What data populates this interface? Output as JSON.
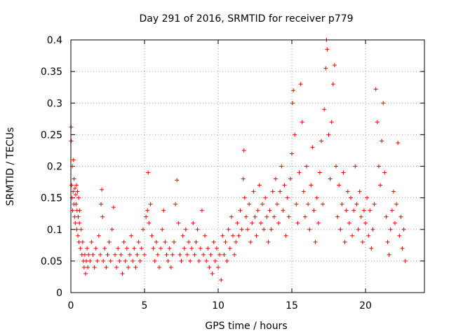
{
  "chart_data": {
    "type": "scatter",
    "title": "Day 291 of 2016, SRMTID for receiver p779",
    "xlabel": "GPS time / hours",
    "ylabel": "SRMTID / TECUs",
    "xlim": [
      0,
      24
    ],
    "ylim": [
      0,
      0.4
    ],
    "grid": true,
    "marker": "+",
    "color": "#ff0000",
    "xticks": [
      0,
      5,
      10,
      15,
      20
    ],
    "xtick_labels": [
      "0",
      "5",
      "10",
      "15",
      "20"
    ],
    "yticks": [
      0,
      0.05,
      0.1,
      0.15,
      0.2,
      0.25,
      0.3,
      0.35,
      0.4
    ],
    "ytick_labels": [
      "0",
      "0.05",
      "0.1",
      "0.15",
      "0.2",
      "0.25",
      "0.3",
      "0.35",
      "0.4"
    ],
    "series": [
      {
        "name": "p779",
        "points": [
          [
            0.02,
            0.262
          ],
          [
            0.03,
            0.24
          ],
          [
            0.05,
            0.17
          ],
          [
            0.08,
            0.15
          ],
          [
            0.1,
            0.2
          ],
          [
            0.12,
            0.13
          ],
          [
            0.15,
            0.16
          ],
          [
            0.18,
            0.21
          ],
          [
            0.2,
            0.14
          ],
          [
            0.22,
            0.18
          ],
          [
            0.25,
            0.12
          ],
          [
            0.28,
            0.165
          ],
          [
            0.3,
            0.11
          ],
          [
            0.33,
            0.155
          ],
          [
            0.35,
            0.14
          ],
          [
            0.38,
            0.17
          ],
          [
            0.4,
            0.1
          ],
          [
            0.42,
            0.13
          ],
          [
            0.45,
            0.16
          ],
          [
            0.48,
            0.09
          ],
          [
            0.5,
            0.12
          ],
          [
            0.53,
            0.15
          ],
          [
            0.55,
            0.08
          ],
          [
            0.58,
            0.11
          ],
          [
            0.6,
            0.13
          ],
          [
            0.65,
            0.07
          ],
          [
            0.7,
            0.1
          ],
          [
            0.75,
            0.06
          ],
          [
            0.8,
            0.08
          ],
          [
            0.85,
            0.05
          ],
          [
            0.9,
            0.04
          ],
          [
            0.95,
            0.06
          ],
          [
            1.0,
            0.03
          ],
          [
            1.05,
            0.05
          ],
          [
            1.1,
            0.07
          ],
          [
            1.15,
            0.04
          ],
          [
            1.2,
            0.06
          ],
          [
            1.3,
            0.05
          ],
          [
            1.4,
            0.08
          ],
          [
            1.5,
            0.06
          ],
          [
            1.6,
            0.04
          ],
          [
            1.7,
            0.07
          ],
          [
            1.8,
            0.05
          ],
          [
            1.9,
            0.09
          ],
          [
            2.0,
            0.06
          ],
          [
            2.05,
            0.14
          ],
          [
            2.1,
            0.163
          ],
          [
            2.15,
            0.12
          ],
          [
            2.2,
            0.05
          ],
          [
            2.3,
            0.07
          ],
          [
            2.4,
            0.04
          ],
          [
            2.5,
            0.06
          ],
          [
            2.6,
            0.08
          ],
          [
            2.7,
            0.05
          ],
          [
            2.8,
            0.1
          ],
          [
            2.9,
            0.135
          ],
          [
            3.0,
            0.06
          ],
          [
            3.1,
            0.04
          ],
          [
            3.2,
            0.07
          ],
          [
            3.3,
            0.05
          ],
          [
            3.4,
            0.06
          ],
          [
            3.5,
            0.03
          ],
          [
            3.6,
            0.08
          ],
          [
            3.7,
            0.05
          ],
          [
            3.8,
            0.07
          ],
          [
            3.9,
            0.04
          ],
          [
            4.0,
            0.06
          ],
          [
            4.1,
            0.09
          ],
          [
            4.2,
            0.05
          ],
          [
            4.3,
            0.07
          ],
          [
            4.4,
            0.04
          ],
          [
            4.5,
            0.06
          ],
          [
            4.6,
            0.08
          ],
          [
            4.7,
            0.05
          ],
          [
            4.8,
            0.07
          ],
          [
            4.9,
            0.1
          ],
          [
            5.0,
            0.06
          ],
          [
            5.1,
            0.12
          ],
          [
            5.2,
            0.13
          ],
          [
            5.25,
            0.19
          ],
          [
            5.3,
            0.11
          ],
          [
            5.4,
            0.14
          ],
          [
            5.5,
            0.09
          ],
          [
            5.6,
            0.07
          ],
          [
            5.7,
            0.05
          ],
          [
            5.8,
            0.08
          ],
          [
            5.9,
            0.06
          ],
          [
            6.0,
            0.04
          ],
          [
            6.1,
            0.07
          ],
          [
            6.2,
            0.1
          ],
          [
            6.3,
            0.13
          ],
          [
            6.4,
            0.08
          ],
          [
            6.5,
            0.06
          ],
          [
            6.6,
            0.05
          ],
          [
            6.7,
            0.07
          ],
          [
            6.8,
            0.04
          ],
          [
            6.9,
            0.06
          ],
          [
            7.0,
            0.08
          ],
          [
            7.1,
            0.14
          ],
          [
            7.2,
            0.178
          ],
          [
            7.3,
            0.11
          ],
          [
            7.4,
            0.06
          ],
          [
            7.5,
            0.05
          ],
          [
            7.6,
            0.09
          ],
          [
            7.7,
            0.07
          ],
          [
            7.8,
            0.1
          ],
          [
            7.9,
            0.06
          ],
          [
            8.0,
            0.08
          ],
          [
            8.1,
            0.05
          ],
          [
            8.2,
            0.07
          ],
          [
            8.3,
            0.11
          ],
          [
            8.4,
            0.06
          ],
          [
            8.5,
            0.08
          ],
          [
            8.6,
            0.1
          ],
          [
            8.7,
            0.05
          ],
          [
            8.8,
            0.07
          ],
          [
            8.9,
            0.13
          ],
          [
            9.0,
            0.06
          ],
          [
            9.1,
            0.09
          ],
          [
            9.2,
            0.05
          ],
          [
            9.3,
            0.07
          ],
          [
            9.4,
            0.04
          ],
          [
            9.5,
            0.06
          ],
          [
            9.6,
            0.03
          ],
          [
            9.7,
            0.08
          ],
          [
            9.8,
            0.05
          ],
          [
            9.9,
            0.07
          ],
          [
            10.0,
            0.04
          ],
          [
            10.1,
            0.06
          ],
          [
            10.2,
            0.02
          ],
          [
            10.3,
            0.09
          ],
          [
            10.4,
            0.06
          ],
          [
            10.5,
            0.08
          ],
          [
            10.6,
            0.05
          ],
          [
            10.7,
            0.1
          ],
          [
            10.8,
            0.07
          ],
          [
            10.9,
            0.12
          ],
          [
            11.0,
            0.09
          ],
          [
            11.1,
            0.06
          ],
          [
            11.2,
            0.08
          ],
          [
            11.3,
            0.11
          ],
          [
            11.4,
            0.09
          ],
          [
            11.5,
            0.13
          ],
          [
            11.6,
            0.1
          ],
          [
            11.7,
            0.18
          ],
          [
            11.75,
            0.225
          ],
          [
            11.8,
            0.15
          ],
          [
            11.9,
            0.12
          ],
          [
            12.0,
            0.1
          ],
          [
            12.1,
            0.14
          ],
          [
            12.2,
            0.08
          ],
          [
            12.3,
            0.11
          ],
          [
            12.4,
            0.16
          ],
          [
            12.5,
            0.12
          ],
          [
            12.6,
            0.09
          ],
          [
            12.7,
            0.13
          ],
          [
            12.8,
            0.17
          ],
          [
            12.9,
            0.11
          ],
          [
            13.0,
            0.14
          ],
          [
            13.1,
            0.1
          ],
          [
            13.2,
            0.15
          ],
          [
            13.3,
            0.12
          ],
          [
            13.4,
            0.08
          ],
          [
            13.5,
            0.13
          ],
          [
            13.6,
            0.1
          ],
          [
            13.7,
            0.16
          ],
          [
            13.8,
            0.12
          ],
          [
            13.9,
            0.18
          ],
          [
            14.0,
            0.14
          ],
          [
            14.1,
            0.11
          ],
          [
            14.2,
            0.16
          ],
          [
            14.3,
            0.2
          ],
          [
            14.4,
            0.13
          ],
          [
            14.5,
            0.17
          ],
          [
            14.6,
            0.09
          ],
          [
            14.7,
            0.15
          ],
          [
            14.8,
            0.12
          ],
          [
            14.9,
            0.18
          ],
          [
            15.0,
            0.22
          ],
          [
            15.05,
            0.3
          ],
          [
            15.1,
            0.32
          ],
          [
            15.2,
            0.25
          ],
          [
            15.3,
            0.14
          ],
          [
            15.4,
            0.11
          ],
          [
            15.5,
            0.19
          ],
          [
            15.6,
            0.33
          ],
          [
            15.7,
            0.27
          ],
          [
            15.8,
            0.16
          ],
          [
            15.9,
            0.12
          ],
          [
            16.0,
            0.2
          ],
          [
            16.1,
            0.14
          ],
          [
            16.2,
            0.1
          ],
          [
            16.3,
            0.17
          ],
          [
            16.4,
            0.23
          ],
          [
            16.5,
            0.13
          ],
          [
            16.6,
            0.08
          ],
          [
            16.7,
            0.15
          ],
          [
            16.8,
            0.11
          ],
          [
            16.9,
            0.19
          ],
          [
            17.0,
            0.24
          ],
          [
            17.1,
            0.14
          ],
          [
            17.2,
            0.29
          ],
          [
            17.3,
            0.355
          ],
          [
            17.35,
            0.4
          ],
          [
            17.4,
            0.385
          ],
          [
            17.5,
            0.25
          ],
          [
            17.6,
            0.18
          ],
          [
            17.7,
            0.27
          ],
          [
            17.8,
            0.33
          ],
          [
            17.9,
            0.36
          ],
          [
            18.0,
            0.2
          ],
          [
            18.1,
            0.12
          ],
          [
            18.2,
            0.17
          ],
          [
            18.3,
            0.1
          ],
          [
            18.4,
            0.14
          ],
          [
            18.5,
            0.19
          ],
          [
            18.6,
            0.08
          ],
          [
            18.7,
            0.13
          ],
          [
            18.8,
            0.16
          ],
          [
            18.9,
            0.11
          ],
          [
            19.0,
            0.15
          ],
          [
            19.1,
            0.09
          ],
          [
            19.2,
            0.13
          ],
          [
            19.3,
            0.2
          ],
          [
            19.4,
            0.14
          ],
          [
            19.5,
            0.1
          ],
          [
            19.6,
            0.16
          ],
          [
            19.7,
            0.12
          ],
          [
            19.8,
            0.08
          ],
          [
            19.9,
            0.13
          ],
          [
            20.0,
            0.11
          ],
          [
            20.1,
            0.15
          ],
          [
            20.2,
            0.09
          ],
          [
            20.3,
            0.13
          ],
          [
            20.4,
            0.07
          ],
          [
            20.5,
            0.1
          ],
          [
            20.6,
            0.14
          ],
          [
            20.7,
            0.322
          ],
          [
            20.8,
            0.27
          ],
          [
            20.9,
            0.2
          ],
          [
            21.0,
            0.17
          ],
          [
            21.1,
            0.24
          ],
          [
            21.2,
            0.3
          ],
          [
            21.3,
            0.19
          ],
          [
            21.4,
            0.12
          ],
          [
            21.5,
            0.08
          ],
          [
            21.6,
            0.06
          ],
          [
            21.7,
            0.1
          ],
          [
            21.8,
            0.13
          ],
          [
            21.9,
            0.16
          ],
          [
            22.0,
            0.11
          ],
          [
            22.1,
            0.14
          ],
          [
            22.2,
            0.237
          ],
          [
            22.3,
            0.09
          ],
          [
            22.4,
            0.12
          ],
          [
            22.5,
            0.07
          ],
          [
            22.6,
            0.1
          ],
          [
            22.7,
            0.05
          ]
        ]
      }
    ]
  }
}
